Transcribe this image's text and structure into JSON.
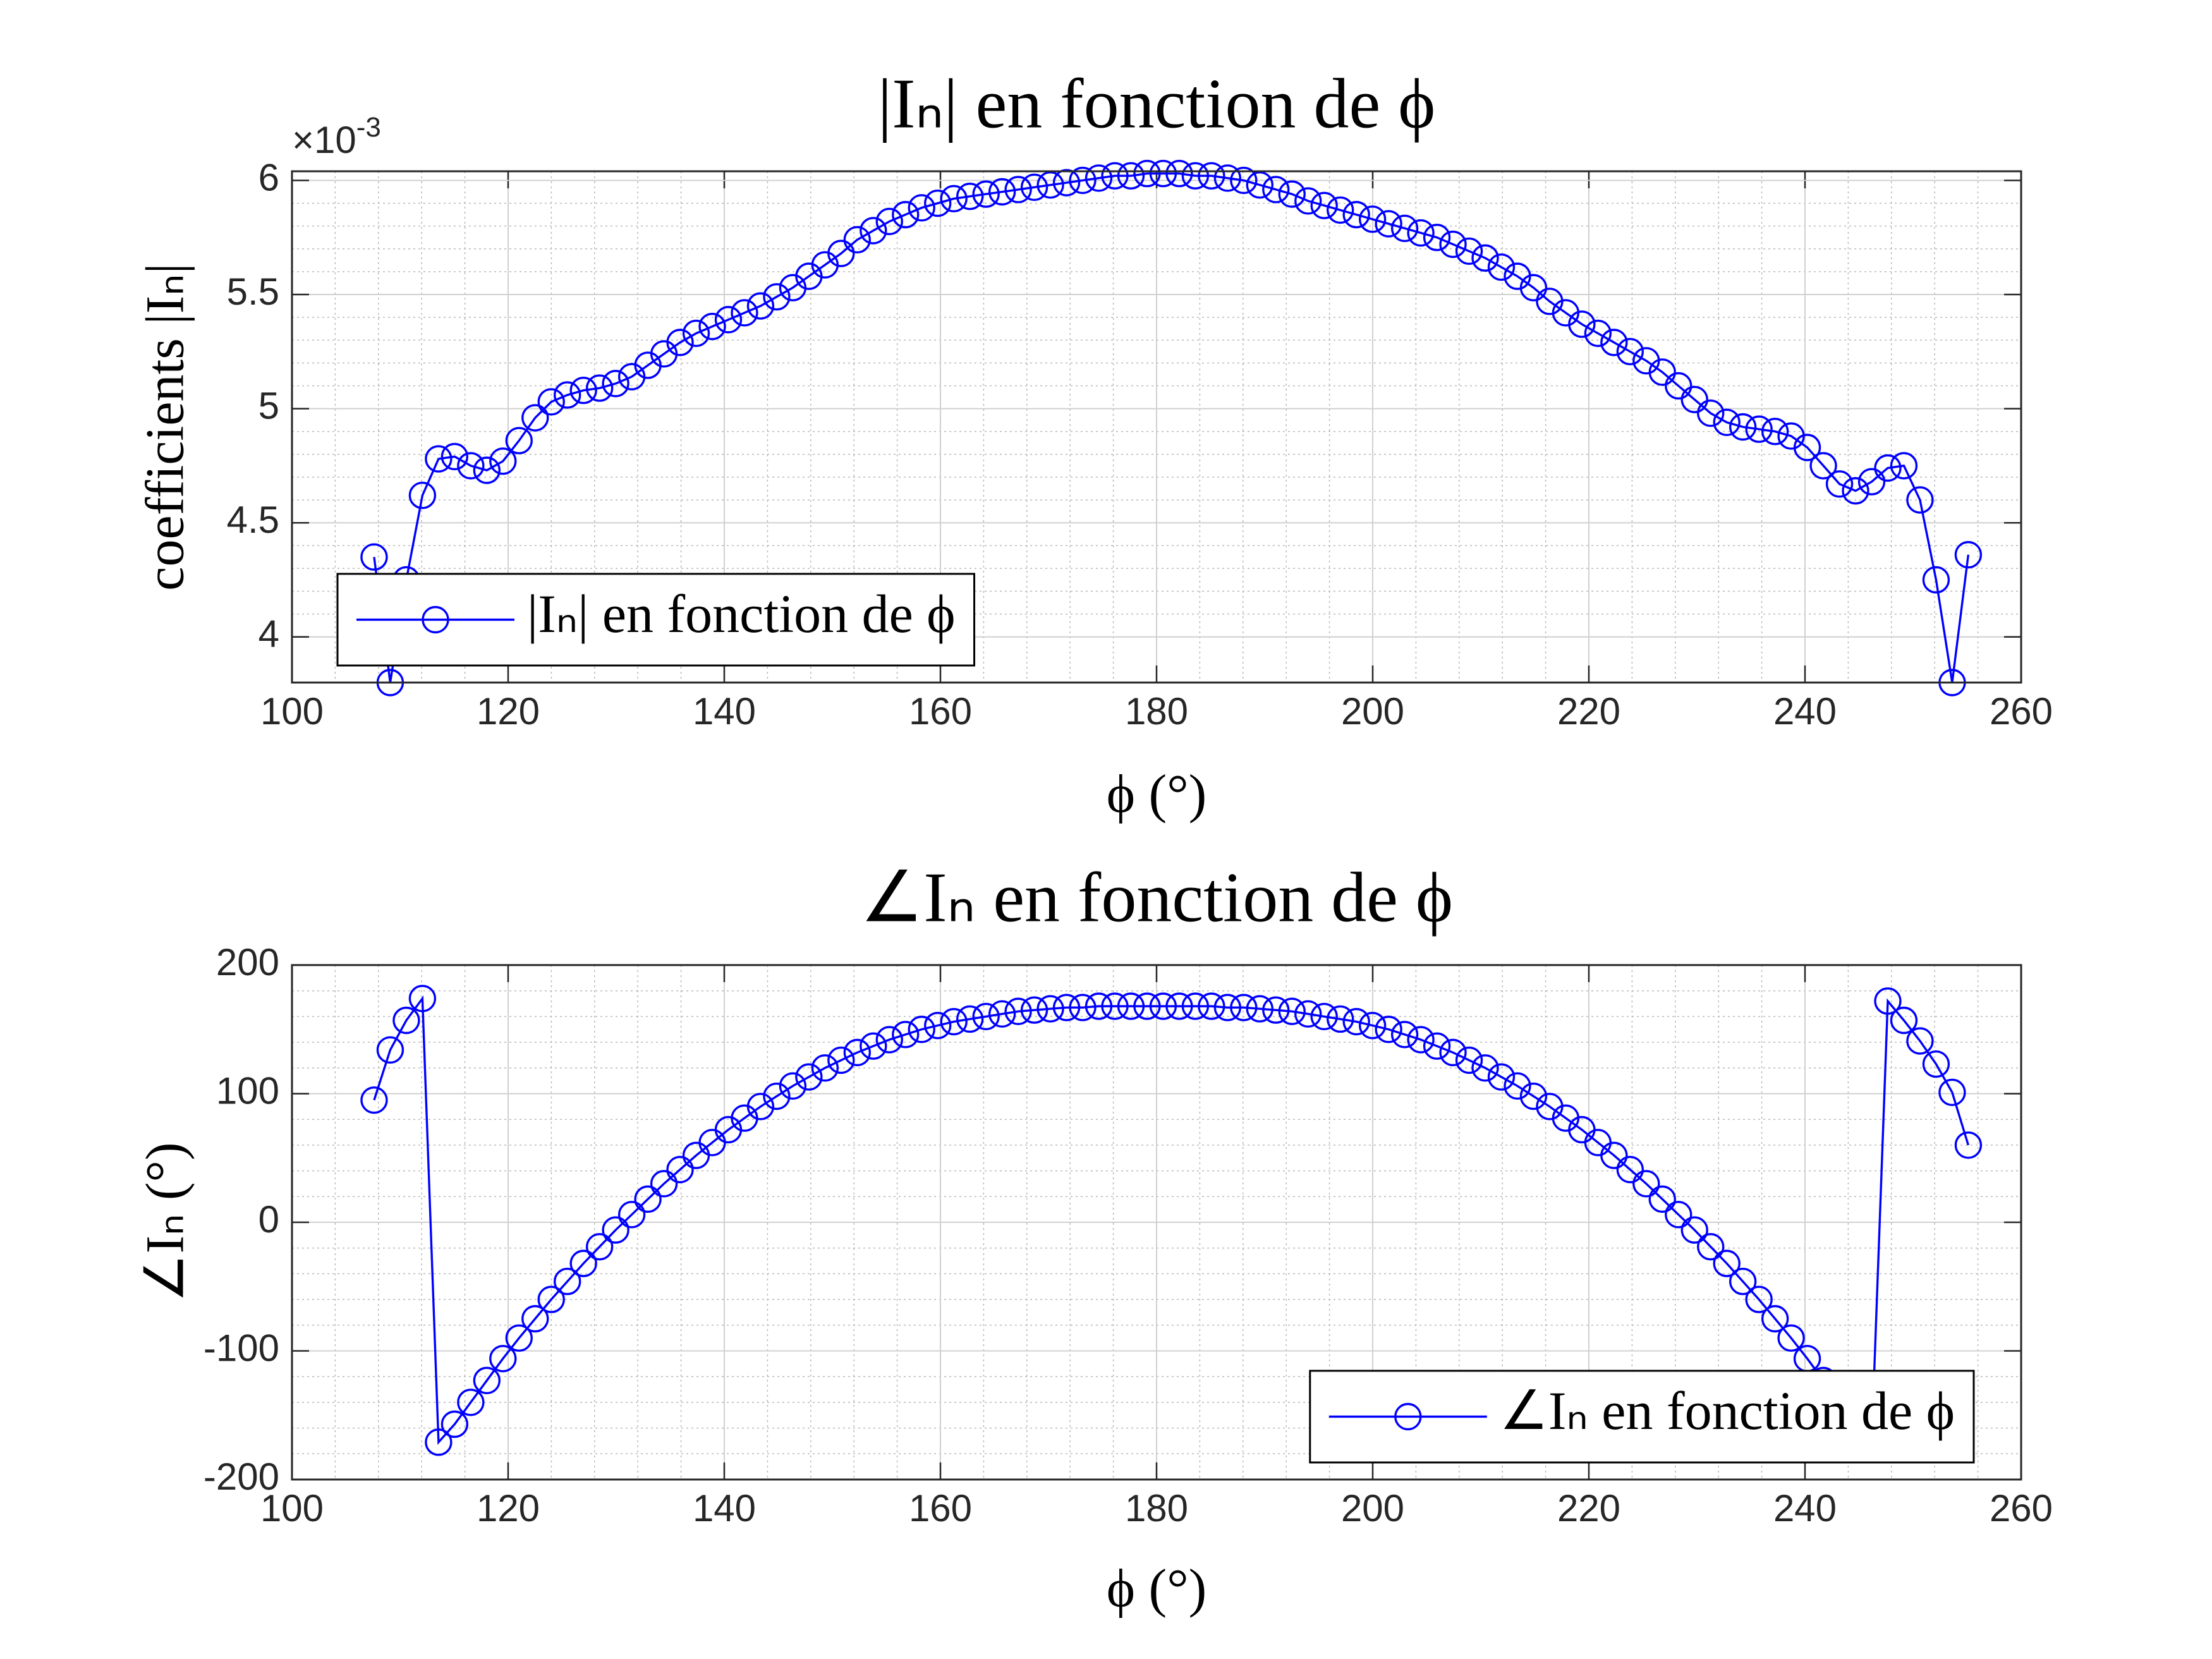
{
  "chart_data": [
    {
      "type": "line",
      "title": "|Iₙ| en fonction de ϕ",
      "xlabel": "ϕ (°)",
      "ylabel": "coefficients |Iₙ|",
      "y_multiplier_label": "×10",
      "y_exponent": "-3",
      "xlim": [
        100,
        260
      ],
      "xticks": [
        100,
        120,
        140,
        160,
        180,
        200,
        220,
        240,
        260
      ],
      "ylim": [
        3.8,
        6.04
      ],
      "yticks": [
        4,
        4.5,
        5,
        5.5,
        6
      ],
      "grid": true,
      "minor_grid": true,
      "legend": "southwest",
      "x": [
        107.6,
        109.09,
        110.58,
        112.07,
        113.56,
        115.05,
        116.54,
        118.03,
        119.52,
        121.01,
        122.5,
        123.99,
        125.48,
        126.97,
        128.46,
        129.95,
        131.44,
        132.93,
        134.42,
        135.91,
        137.4,
        138.89,
        140.38,
        141.87,
        143.36,
        144.85,
        146.34,
        147.83,
        149.32,
        150.81,
        152.3,
        153.79,
        155.28,
        156.77,
        158.26,
        159.75,
        161.24,
        162.73,
        164.22,
        165.71,
        167.2,
        168.69,
        170.18,
        171.67,
        173.16,
        174.65,
        176.14,
        177.63,
        179.12,
        180.61,
        182.1,
        183.59,
        185.08,
        186.57,
        188.06,
        189.55,
        191.04,
        192.53,
        194.02,
        195.51,
        197,
        198.49,
        199.98,
        201.47,
        202.96,
        204.45,
        205.94,
        207.43,
        208.92,
        210.41,
        211.9,
        213.39,
        214.88,
        216.37,
        217.86,
        219.35,
        220.84,
        222.33,
        223.82,
        225.31,
        226.8,
        228.29,
        229.78,
        231.27,
        232.76,
        234.25,
        235.74,
        237.23,
        238.72,
        240.21,
        241.7,
        243.19,
        244.68,
        246.17,
        247.66,
        249.15,
        250.64,
        252.13,
        253.62,
        255.11
      ],
      "series": [
        {
          "name": "|Iₙ| en fonction de ϕ",
          "color": "#0000ff",
          "values": [
            4.35,
            3.8,
            4.25,
            4.62,
            4.78,
            4.79,
            4.75,
            4.73,
            4.77,
            4.86,
            4.96,
            5.03,
            5.06,
            5.08,
            5.09,
            5.11,
            5.14,
            5.19,
            5.24,
            5.29,
            5.33,
            5.36,
            5.39,
            5.42,
            5.45,
            5.49,
            5.53,
            5.58,
            5.63,
            5.68,
            5.74,
            5.78,
            5.82,
            5.85,
            5.88,
            5.9,
            5.92,
            5.93,
            5.94,
            5.95,
            5.96,
            5.97,
            5.98,
            5.99,
            6,
            6.01,
            6.02,
            6.02,
            6.03,
            6.03,
            6.03,
            6.02,
            6.02,
            6.01,
            6,
            5.98,
            5.96,
            5.94,
            5.91,
            5.89,
            5.87,
            5.85,
            5.83,
            5.81,
            5.79,
            5.77,
            5.75,
            5.72,
            5.69,
            5.66,
            5.62,
            5.58,
            5.53,
            5.47,
            5.42,
            5.37,
            5.33,
            5.29,
            5.25,
            5.21,
            5.16,
            5.1,
            5.04,
            4.98,
            4.94,
            4.92,
            4.91,
            4.9,
            4.88,
            4.83,
            4.75,
            4.67,
            4.64,
            4.68,
            4.74,
            4.75,
            4.6,
            4.25,
            3.8,
            4.36
          ]
        }
      ]
    },
    {
      "type": "line",
      "title": "∠Iₙ en fonction de ϕ",
      "xlabel": "ϕ (°)",
      "ylabel": "∠Iₙ (°)",
      "xlim": [
        100,
        260
      ],
      "xticks": [
        100,
        120,
        140,
        160,
        180,
        200,
        220,
        240,
        260
      ],
      "ylim": [
        -200,
        200
      ],
      "yticks": [
        -200,
        -100,
        0,
        100,
        200
      ],
      "grid": true,
      "minor_grid": true,
      "legend": "southeast",
      "x": [
        107.6,
        109.09,
        110.58,
        112.07,
        113.56,
        115.05,
        116.54,
        118.03,
        119.52,
        121.01,
        122.5,
        123.99,
        125.48,
        126.97,
        128.46,
        129.95,
        131.44,
        132.93,
        134.42,
        135.91,
        137.4,
        138.89,
        140.38,
        141.87,
        143.36,
        144.85,
        146.34,
        147.83,
        149.32,
        150.81,
        152.3,
        153.79,
        155.28,
        156.77,
        158.26,
        159.75,
        161.24,
        162.73,
        164.22,
        165.71,
        167.2,
        168.69,
        170.18,
        171.67,
        173.16,
        174.65,
        176.14,
        177.63,
        179.12,
        180.61,
        182.1,
        183.59,
        185.08,
        186.57,
        188.06,
        189.55,
        191.04,
        192.53,
        194.02,
        195.51,
        197,
        198.49,
        199.98,
        201.47,
        202.96,
        204.45,
        205.94,
        207.43,
        208.92,
        210.41,
        211.9,
        213.39,
        214.88,
        216.37,
        217.86,
        219.35,
        220.84,
        222.33,
        223.82,
        225.31,
        226.8,
        228.29,
        229.78,
        231.27,
        232.76,
        234.25,
        235.74,
        237.23,
        238.72,
        240.21,
        241.7,
        243.19,
        244.68,
        246.17,
        247.66,
        249.15,
        250.64,
        252.13,
        253.62,
        255.11
      ],
      "series": [
        {
          "name": "∠Iₙ en fonction de ϕ",
          "color": "#0000ff",
          "values": [
            95,
            134,
            157,
            174,
            -171,
            -157,
            -140,
            -123,
            -106,
            -90,
            -75,
            -60,
            -46,
            -32,
            -19,
            -6,
            6,
            18,
            30,
            41,
            52,
            62,
            72,
            81,
            90,
            98,
            106,
            113,
            120,
            126,
            132,
            137,
            142,
            146,
            150,
            153,
            156,
            158,
            160,
            162,
            164,
            165,
            166,
            167,
            167,
            168,
            168,
            168,
            168,
            168,
            168,
            168,
            168,
            167,
            167,
            166,
            165,
            164,
            162,
            160,
            158,
            156,
            153,
            150,
            146,
            142,
            137,
            132,
            126,
            120,
            113,
            106,
            98,
            90,
            81,
            72,
            62,
            52,
            41,
            30,
            18,
            6,
            -6,
            -19,
            -32,
            -46,
            -60,
            -75,
            -90,
            -106,
            -123,
            -140,
            -157,
            -171,
            172,
            157,
            141,
            123,
            101,
            60
          ]
        }
      ]
    }
  ]
}
